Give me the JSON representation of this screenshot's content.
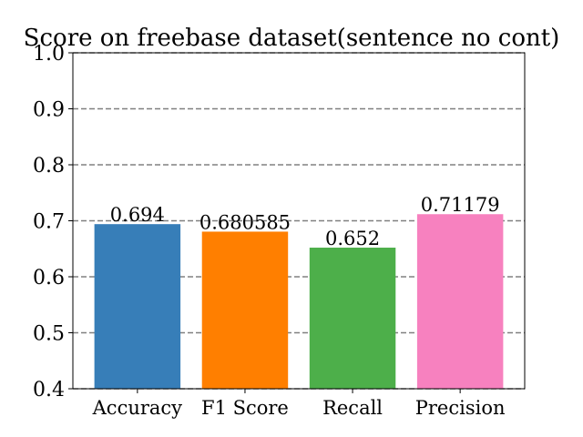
{
  "chart_data": {
    "type": "bar",
    "title": "Score on freebase dataset(sentence no cont)",
    "xlabel": "",
    "ylabel": "",
    "categories": [
      "Accuracy",
      "F1 Score",
      "Recall",
      "Precision"
    ],
    "values": [
      0.694,
      0.680585,
      0.652,
      0.71179
    ],
    "data_labels": [
      "0.694",
      "0.680585",
      "0.652",
      "0.71179"
    ],
    "colors": [
      "#377eb8",
      "#ff7f00",
      "#4daf4a",
      "#f781bf"
    ],
    "ylim": [
      0.4,
      1.0
    ],
    "yticks": [
      "0.4",
      "0.5",
      "0.6",
      "0.7",
      "0.8",
      "0.9",
      "1.0"
    ],
    "grid": "horizontal dashed",
    "legend": "none"
  }
}
